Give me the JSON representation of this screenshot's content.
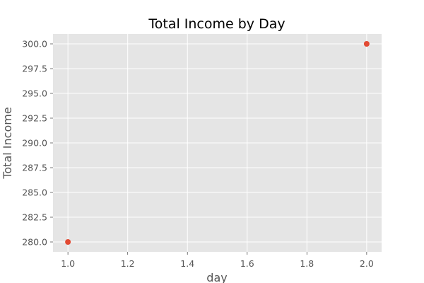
{
  "chart_data": {
    "type": "scatter",
    "title": "Total Income by Day",
    "xlabel": "day",
    "ylabel": "Total Income",
    "xlim": [
      0.95,
      2.05
    ],
    "ylim": [
      279.0,
      301.0
    ],
    "xticks": [
      1.0,
      1.2,
      1.4,
      1.6,
      1.8,
      2.0
    ],
    "xtick_labels": [
      "1.0",
      "1.2",
      "1.4",
      "1.6",
      "1.8",
      "2.0"
    ],
    "yticks": [
      280.0,
      282.5,
      285.0,
      287.5,
      290.0,
      292.5,
      295.0,
      297.5,
      300.0
    ],
    "ytick_labels": [
      "280.0",
      "282.5",
      "285.0",
      "287.5",
      "290.0",
      "292.5",
      "295.0",
      "297.5",
      "300.0"
    ],
    "grid": true,
    "series": [
      {
        "x": [
          1.0,
          2.0
        ],
        "y": [
          280.0,
          300.0
        ],
        "color": "#e24a33"
      }
    ],
    "background_color": "#e5e5e5",
    "grid_color": "#ffffff"
  }
}
